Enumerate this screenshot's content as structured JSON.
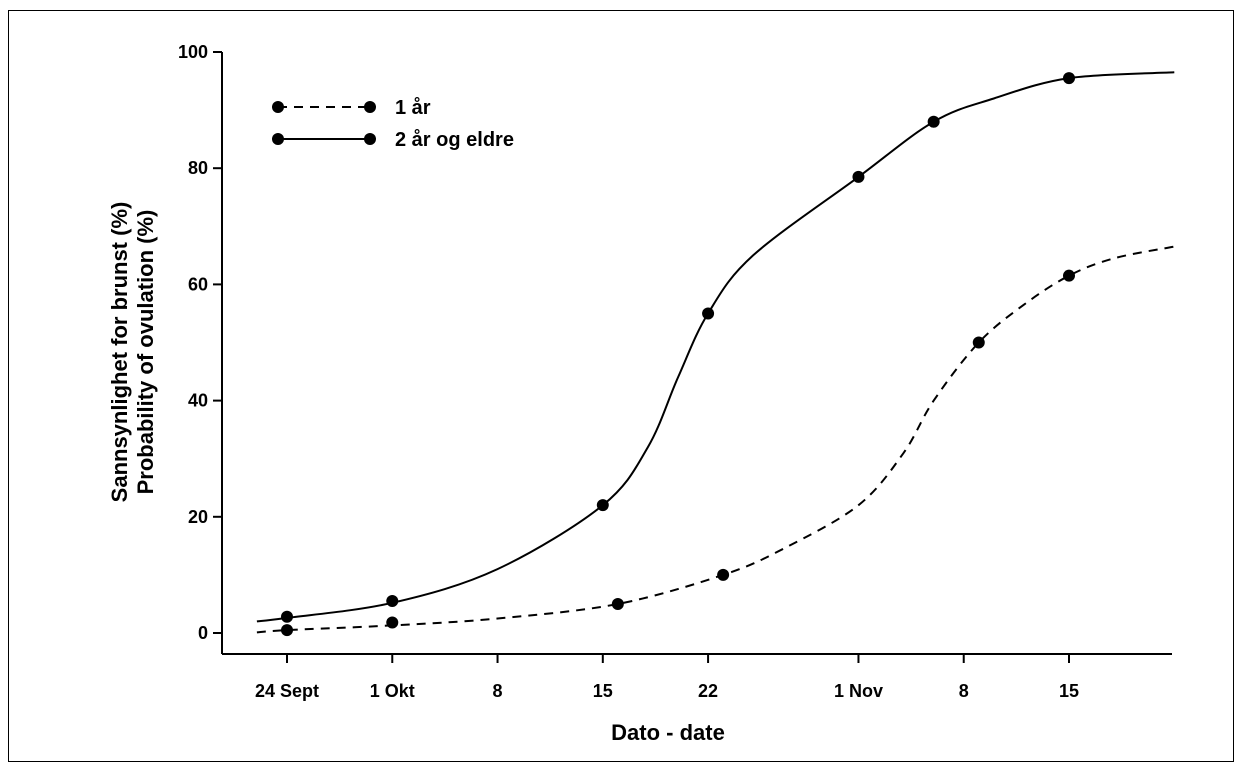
{
  "chart_data": {
    "type": "line",
    "xlabel": "Dato - date",
    "ylabel_lines": [
      "Sannsynlighet for brunst (%)",
      "Probability of ovulation (%)"
    ],
    "x_unit": "date",
    "x_ticks": [
      {
        "date": "09-24",
        "label": "24 Sept"
      },
      {
        "date": "10-01",
        "label": "1 Okt"
      },
      {
        "date": "10-08",
        "label": "8"
      },
      {
        "date": "10-15",
        "label": "15"
      },
      {
        "date": "10-22",
        "label": "22"
      },
      {
        "date": "11-01",
        "label": "1 Nov"
      },
      {
        "date": "11-08",
        "label": "8"
      },
      {
        "date": "11-15",
        "label": "15"
      }
    ],
    "xlim": [
      "09-22",
      "11-22"
    ],
    "ylim": [
      0,
      100
    ],
    "y_ticks": [
      0,
      20,
      40,
      60,
      80,
      100
    ],
    "grid": false,
    "legend_position": "top-left",
    "series": [
      {
        "name": "1 år",
        "line_style": "dashed",
        "points": [
          {
            "date": "09-24",
            "y": 0.5
          },
          {
            "date": "10-01",
            "y": 1.8
          },
          {
            "date": "10-16",
            "y": 5.0
          },
          {
            "date": "10-23",
            "y": 10.0
          },
          {
            "date": "11-09",
            "y": 50.0
          },
          {
            "date": "11-15",
            "y": 61.5
          }
        ],
        "curve": [
          {
            "date": "09-22",
            "y": 0.1
          },
          {
            "date": "09-24",
            "y": 0.5
          },
          {
            "date": "10-01",
            "y": 1.3
          },
          {
            "date": "10-08",
            "y": 2.5
          },
          {
            "date": "10-16",
            "y": 5.0
          },
          {
            "date": "10-23",
            "y": 10.0
          },
          {
            "date": "10-27",
            "y": 14.5
          },
          {
            "date": "11-01",
            "y": 22.0
          },
          {
            "date": "11-04",
            "y": 31.0
          },
          {
            "date": "11-06",
            "y": 40.0
          },
          {
            "date": "11-09",
            "y": 50.0
          },
          {
            "date": "11-12",
            "y": 56.5
          },
          {
            "date": "11-15",
            "y": 61.5
          },
          {
            "date": "11-18",
            "y": 64.5
          },
          {
            "date": "11-22",
            "y": 66.5
          }
        ]
      },
      {
        "name": "2 år og eldre",
        "line_style": "solid",
        "points": [
          {
            "date": "09-24",
            "y": 2.8
          },
          {
            "date": "10-01",
            "y": 5.5
          },
          {
            "date": "10-15",
            "y": 22.0
          },
          {
            "date": "10-22",
            "y": 55.0
          },
          {
            "date": "11-01",
            "y": 78.5
          },
          {
            "date": "11-06",
            "y": 88.0
          },
          {
            "date": "11-15",
            "y": 95.5
          }
        ],
        "curve": [
          {
            "date": "09-22",
            "y": 2.0
          },
          {
            "date": "09-24",
            "y": 2.6
          },
          {
            "date": "10-01",
            "y": 5.2
          },
          {
            "date": "10-08",
            "y": 11.0
          },
          {
            "date": "10-15",
            "y": 22.0
          },
          {
            "date": "10-18",
            "y": 32.0
          },
          {
            "date": "10-20",
            "y": 44.0
          },
          {
            "date": "10-22",
            "y": 55.0
          },
          {
            "date": "10-25",
            "y": 65.0
          },
          {
            "date": "11-01",
            "y": 78.5
          },
          {
            "date": "11-06",
            "y": 88.0
          },
          {
            "date": "11-10",
            "y": 92.0
          },
          {
            "date": "11-15",
            "y": 95.5
          },
          {
            "date": "11-22",
            "y": 96.5
          }
        ]
      }
    ]
  }
}
